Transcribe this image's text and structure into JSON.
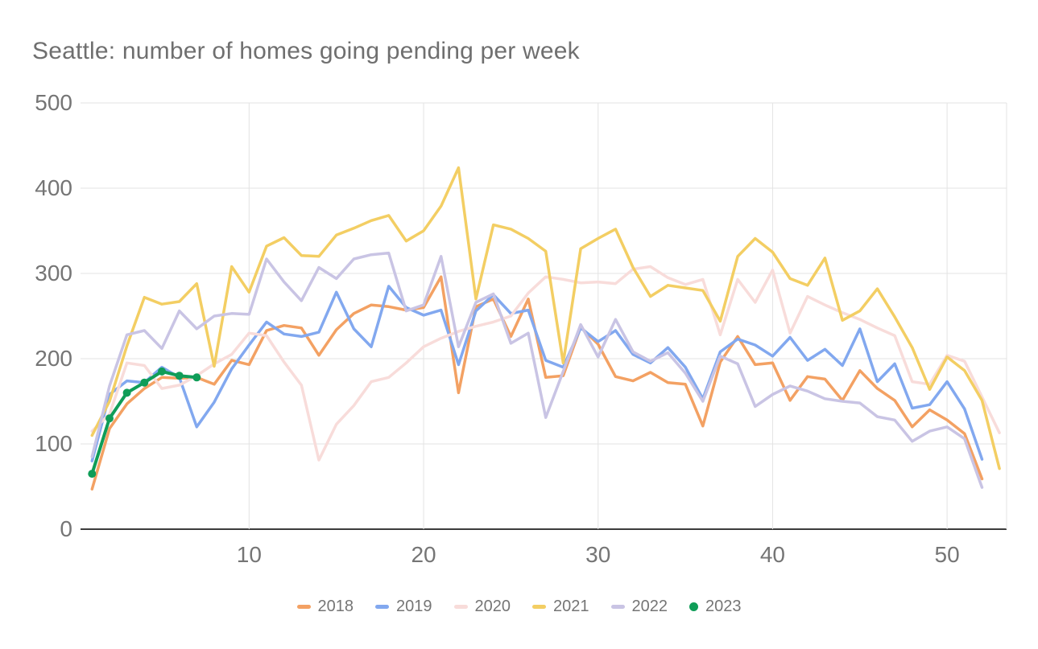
{
  "title": "Seattle: number of homes going pending per week",
  "colors": {
    "title_text": "#6f6f6f",
    "tick_text": "#757575",
    "gridline": "#e3e3e3",
    "axis_line": "#3c3c3c",
    "background": "#ffffff"
  },
  "chart_data": {
    "type": "line",
    "title": "Seattle: number of homes going pending per week",
    "xlabel": "",
    "ylabel": "",
    "xlim": [
      1,
      53
    ],
    "ylim": [
      0,
      500
    ],
    "x_ticks": [
      10,
      20,
      30,
      40,
      50
    ],
    "y_ticks": [
      0,
      100,
      200,
      300,
      400,
      500
    ],
    "grid": true,
    "legend_position": "bottom",
    "x_unit": "week of year",
    "series": [
      {
        "name": "2018",
        "color": "#f3a163",
        "style": "line",
        "values": [
          47,
          118,
          147,
          165,
          178,
          177,
          178,
          170,
          198,
          193,
          233,
          239,
          236,
          204,
          234,
          253,
          263,
          261,
          257,
          260,
          296,
          160,
          261,
          270,
          226,
          270,
          178,
          180,
          237,
          217,
          179,
          174,
          184,
          172,
          170,
          121,
          196,
          226,
          193,
          195,
          151,
          179,
          176,
          151,
          186,
          165,
          151,
          120,
          140,
          128,
          112,
          59
        ]
      },
      {
        "name": "2019",
        "color": "#82a8ef",
        "style": "line",
        "values": [
          80,
          158,
          174,
          172,
          190,
          178,
          120,
          149,
          188,
          216,
          243,
          229,
          226,
          231,
          278,
          235,
          214,
          285,
          260,
          251,
          257,
          193,
          256,
          275,
          253,
          257,
          198,
          190,
          236,
          220,
          233,
          205,
          195,
          213,
          190,
          153,
          208,
          223,
          216,
          203,
          225,
          198,
          211,
          192,
          235,
          173,
          194,
          142,
          146,
          173,
          141,
          82
        ]
      },
      {
        "name": "2020",
        "color": "#f8dcda",
        "style": "line",
        "values": [
          115,
          135,
          195,
          192,
          165,
          169,
          180,
          194,
          205,
          230,
          227,
          196,
          169,
          81,
          123,
          145,
          173,
          178,
          195,
          214,
          224,
          232,
          238,
          243,
          250,
          277,
          296,
          293,
          289,
          290,
          288,
          305,
          308,
          295,
          287,
          293,
          228,
          293,
          266,
          304,
          230,
          273,
          263,
          254,
          246,
          236,
          227,
          173,
          170,
          204,
          197,
          155,
          113
        ]
      },
      {
        "name": "2021",
        "color": "#f3ce63",
        "style": "line",
        "values": [
          110,
          150,
          215,
          272,
          264,
          267,
          288,
          191,
          308,
          278,
          332,
          342,
          321,
          320,
          345,
          353,
          362,
          368,
          338,
          350,
          379,
          424,
          270,
          357,
          352,
          341,
          326,
          195,
          329,
          341,
          352,
          307,
          273,
          286,
          283,
          280,
          244,
          320,
          341,
          325,
          294,
          286,
          318,
          245,
          256,
          282,
          249,
          213,
          164,
          202,
          186,
          151,
          71
        ]
      },
      {
        "name": "2022",
        "color": "#c9c4e4",
        "style": "line",
        "values": [
          85,
          168,
          228,
          233,
          212,
          256,
          235,
          250,
          253,
          252,
          317,
          290,
          268,
          307,
          294,
          317,
          322,
          324,
          256,
          263,
          320,
          214,
          266,
          276,
          218,
          230,
          131,
          185,
          240,
          202,
          246,
          208,
          197,
          207,
          183,
          150,
          203,
          194,
          144,
          158,
          168,
          162,
          153,
          150,
          148,
          132,
          128,
          103,
          115,
          120,
          106,
          49
        ]
      },
      {
        "name": "2023",
        "color": "#0f9d58",
        "style": "line-with-points",
        "values": [
          65,
          130,
          160,
          172,
          185,
          180,
          178
        ]
      }
    ]
  },
  "legend": {
    "items": [
      {
        "label": "2018"
      },
      {
        "label": "2019"
      },
      {
        "label": "2020"
      },
      {
        "label": "2021"
      },
      {
        "label": "2022"
      },
      {
        "label": "2023"
      }
    ]
  }
}
